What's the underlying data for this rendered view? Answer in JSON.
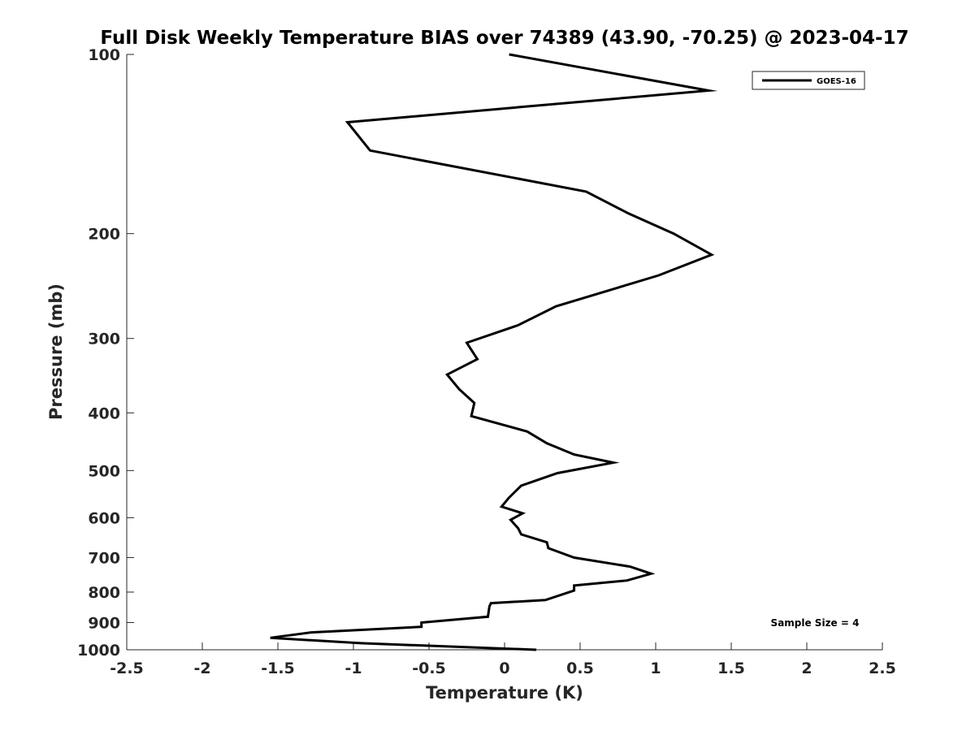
{
  "chart_data": {
    "type": "line",
    "title": "Full Disk Weekly Temperature BIAS over 74389 (43.90, -70.25) @ 2023-04-17",
    "xlabel": "Temperature (K)",
    "ylabel": "Pressure (mb)",
    "xlim": [
      -2.5,
      2.5
    ],
    "ylim": [
      100,
      1000
    ],
    "y_scale": "log",
    "y_reversed": true,
    "grid": false,
    "x_ticks": [
      "-2.5",
      "-2",
      "-1.5",
      "-1",
      "-0.5",
      "0",
      "0.5",
      "1",
      "1.5",
      "2",
      "2.5"
    ],
    "y_ticks": [
      "100",
      "200",
      "300",
      "400",
      "500",
      "600",
      "700",
      "800",
      "900",
      "1000"
    ],
    "legend_position": "top-right",
    "annotation": "Sample Size = 4",
    "series": [
      {
        "name": "GOES-16",
        "color": "#000000",
        "points": [
          {
            "x": 0.03,
            "p": 100
          },
          {
            "x": 1.35,
            "p": 115
          },
          {
            "x": -1.04,
            "p": 130
          },
          {
            "x": -0.89,
            "p": 145
          },
          {
            "x": 0.54,
            "p": 170
          },
          {
            "x": 0.82,
            "p": 185
          },
          {
            "x": 1.12,
            "p": 200
          },
          {
            "x": 1.37,
            "p": 217
          },
          {
            "x": 1.02,
            "p": 235
          },
          {
            "x": 0.34,
            "p": 265
          },
          {
            "x": 0.09,
            "p": 285
          },
          {
            "x": -0.25,
            "p": 305
          },
          {
            "x": -0.18,
            "p": 325
          },
          {
            "x": -0.38,
            "p": 345
          },
          {
            "x": -0.3,
            "p": 365
          },
          {
            "x": -0.2,
            "p": 385
          },
          {
            "x": -0.22,
            "p": 405
          },
          {
            "x": 0.15,
            "p": 430
          },
          {
            "x": 0.28,
            "p": 450
          },
          {
            "x": 0.46,
            "p": 470
          },
          {
            "x": 0.72,
            "p": 485
          },
          {
            "x": 0.35,
            "p": 505
          },
          {
            "x": 0.11,
            "p": 530
          },
          {
            "x": 0.03,
            "p": 555
          },
          {
            "x": -0.02,
            "p": 575
          },
          {
            "x": 0.12,
            "p": 590
          },
          {
            "x": 0.04,
            "p": 605
          },
          {
            "x": 0.09,
            "p": 625
          },
          {
            "x": 0.11,
            "p": 640
          },
          {
            "x": 0.28,
            "p": 660
          },
          {
            "x": 0.29,
            "p": 675
          },
          {
            "x": 0.46,
            "p": 700
          },
          {
            "x": 0.83,
            "p": 725
          },
          {
            "x": 0.97,
            "p": 745
          },
          {
            "x": 0.81,
            "p": 765
          },
          {
            "x": 0.46,
            "p": 780
          },
          {
            "x": 0.46,
            "p": 795
          },
          {
            "x": 0.27,
            "p": 825
          },
          {
            "x": -0.09,
            "p": 835
          },
          {
            "x": -0.1,
            "p": 845
          },
          {
            "x": -0.11,
            "p": 880
          },
          {
            "x": -0.55,
            "p": 900
          },
          {
            "x": -0.55,
            "p": 915
          },
          {
            "x": -1.28,
            "p": 935
          },
          {
            "x": -1.55,
            "p": 955
          },
          {
            "x": -0.95,
            "p": 975
          },
          {
            "x": 0.21,
            "p": 1000
          }
        ]
      }
    ]
  }
}
